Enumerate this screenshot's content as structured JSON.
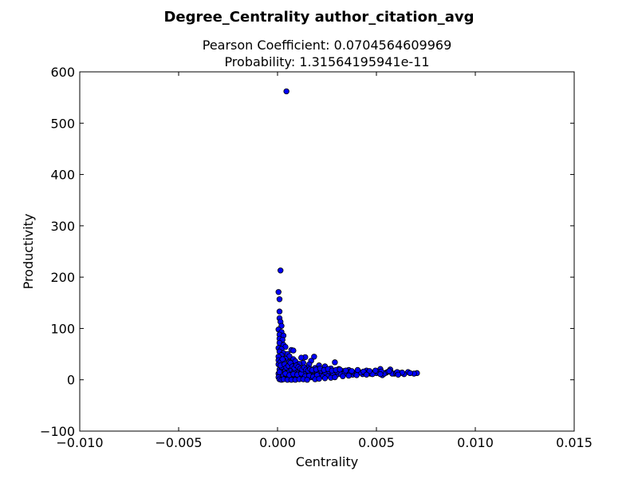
{
  "chart_data": {
    "type": "scatter",
    "title": "Degree_Centrality author_citation_avg",
    "subtitle_lines": [
      "Pearson Coefficient: 0.0704564609969",
      "Probability: 1.31564195941e-11"
    ],
    "xlabel": "Centrality",
    "ylabel": "Productivity",
    "xlim": [
      -0.01,
      0.015
    ],
    "ylim": [
      -100,
      600
    ],
    "x_ticks": [
      -0.01,
      -0.005,
      0.0,
      0.005,
      0.01,
      0.015
    ],
    "x_tick_labels": [
      "−0.010",
      "−0.005",
      "0.000",
      "0.005",
      "0.010",
      "0.015"
    ],
    "y_ticks": [
      -100,
      0,
      100,
      200,
      300,
      400,
      500,
      600
    ],
    "y_tick_labels": [
      "−100",
      "0",
      "100",
      "200",
      "300",
      "400",
      "500",
      "600"
    ],
    "grid": false,
    "marker_color": "#0000ff",
    "marker_edge_color": "#000000",
    "series": [
      {
        "points": [
          [
            0.00045,
            562
          ],
          [
            0.00015,
            213
          ],
          [
            5e-05,
            171
          ],
          [
            0.0001,
            157
          ],
          [
            0.0001,
            133
          ],
          [
            0.0001,
            120
          ],
          [
            0.00015,
            113
          ],
          [
            0.0002,
            105
          ],
          [
            5e-05,
            98
          ],
          [
            0.0002,
            93
          ],
          [
            0.0001,
            88
          ],
          [
            0.0003,
            86
          ],
          [
            0.0001,
            80
          ],
          [
            0.00025,
            78
          ],
          [
            0.0001,
            72
          ],
          [
            0.0003,
            68
          ],
          [
            0.0004,
            64
          ],
          [
            5e-05,
            62
          ],
          [
            0.0002,
            60
          ],
          [
            0.0007,
            58
          ],
          [
            0.0008,
            57
          ],
          [
            0.0001,
            55
          ],
          [
            0.0003,
            52
          ],
          [
            0.0005,
            50
          ],
          [
            0.0002,
            48
          ],
          [
            0.0006,
            46
          ],
          [
            0.00185,
            45
          ],
          [
            0.0014,
            44
          ],
          [
            0.0012,
            43
          ],
          [
            0.0001,
            42
          ],
          [
            0.0004,
            41
          ],
          [
            0.0008,
            40
          ],
          [
            0.0003,
            38
          ],
          [
            0.0017,
            37
          ],
          [
            0.0009,
            36
          ],
          [
            0.0006,
            35
          ],
          [
            0.0029,
            34
          ],
          [
            0.0013,
            33
          ],
          [
            0.0002,
            32
          ],
          [
            0.0011,
            31
          ],
          [
            0.0016,
            30
          ],
          [
            0.0007,
            29
          ],
          [
            0.0021,
            28
          ],
          [
            0.0004,
            27
          ],
          [
            0.0024,
            26
          ],
          [
            0.0009,
            25
          ],
          [
            0.0015,
            24
          ],
          [
            0.0019,
            23
          ],
          [
            0.0027,
            22
          ],
          [
            0.0031,
            21
          ],
          [
            0.0052,
            21
          ],
          [
            0.0057,
            20
          ],
          [
            0.0036,
            19
          ],
          [
            0.0045,
            18
          ],
          [
            0.0033,
            17
          ],
          [
            0.0041,
            16
          ],
          [
            0.0049,
            15
          ],
          [
            0.0055,
            14
          ],
          [
            0.0062,
            13
          ],
          [
            0.0066,
            15
          ],
          [
            0.00705,
            13
          ],
          [
            0.0059,
            12
          ],
          [
            0.0043,
            11
          ],
          [
            0.0038,
            10
          ],
          [
            0.0053,
            9
          ],
          [
            0.0047,
            12
          ],
          [
            0.0026,
            12
          ],
          [
            0.0022,
            11
          ],
          [
            0.0018,
            10
          ],
          [
            0.0014,
            9
          ],
          [
            0.0011,
            8
          ],
          [
            0.0008,
            7
          ],
          [
            0.0006,
            6
          ],
          [
            0.0004,
            5
          ],
          [
            0.0002,
            4
          ],
          [
            0.0001,
            3
          ],
          [
            0.0003,
            2
          ],
          [
            0.0005,
            1
          ],
          [
            0.0007,
            1
          ],
          [
            0.0009,
            2
          ],
          [
            0.0012,
            3
          ],
          [
            0.0015,
            4
          ],
          [
            0.0017,
            5
          ],
          [
            0.002,
            6
          ],
          [
            0.0023,
            7
          ],
          [
            0.0025,
            8
          ],
          [
            0.0028,
            9
          ],
          [
            0.003,
            10
          ],
          [
            0.0032,
            11
          ],
          [
            0.0035,
            12
          ],
          [
            0.0039,
            13
          ],
          [
            0.0044,
            14
          ],
          [
            0.005,
            13
          ],
          [
            0.0058,
            12
          ],
          [
            0.0064,
            11
          ],
          [
            0.0069,
            12
          ],
          [
            0.0001,
            20
          ],
          [
            0.0002,
            25
          ],
          [
            0.0003,
            15
          ],
          [
            0.0004,
            18
          ],
          [
            0.0005,
            22
          ],
          [
            0.0006,
            16
          ],
          [
            0.0007,
            19
          ],
          [
            0.0008,
            14
          ],
          [
            0.0009,
            17
          ],
          [
            0.001,
            21
          ],
          [
            0.0011,
            15
          ],
          [
            0.0012,
            18
          ],
          [
            0.0013,
            12
          ],
          [
            0.0014,
            16
          ],
          [
            0.0016,
            13
          ],
          [
            0.0018,
            17
          ],
          [
            0.002,
            14
          ],
          [
            0.0022,
            18
          ],
          [
            0.0024,
            15
          ],
          [
            0.0026,
            17
          ],
          [
            0.0028,
            13
          ],
          [
            0.003,
            16
          ],
          [
            0.0034,
            14
          ],
          [
            0.0037,
            16
          ],
          [
            0.004,
            12
          ],
          [
            0.0042,
            14
          ],
          [
            0.0046,
            13
          ],
          [
            0.0048,
            11
          ],
          [
            0.0051,
            15
          ],
          [
            0.0054,
            12
          ],
          [
            0.0056,
            16
          ],
          [
            0.006,
            13
          ],
          [
            0.0063,
            14
          ],
          [
            0.0067,
            13
          ],
          [
            0.0002,
            10
          ],
          [
            0.0004,
            12
          ],
          [
            0.0006,
            9
          ],
          [
            0.0008,
            11
          ],
          [
            0.001,
            10
          ],
          [
            0.0012,
            12
          ],
          [
            0.0014,
            7
          ],
          [
            0.0016,
            8
          ],
          [
            0.0018,
            6
          ],
          [
            0.002,
            9
          ],
          [
            5e-05,
            45
          ],
          [
            5e-05,
            38
          ],
          [
            5e-05,
            30
          ],
          [
            5e-05,
            12
          ],
          [
            5e-05,
            5
          ],
          [
            0.0001,
            15
          ],
          [
            0.00015,
            35
          ],
          [
            0.00015,
            28
          ],
          [
            0.00025,
            40
          ],
          [
            0.00035,
            30
          ],
          [
            0.00045,
            24
          ],
          [
            0.00055,
            27
          ],
          [
            0.00065,
            33
          ],
          [
            0.00075,
            26
          ],
          [
            0.00085,
            23
          ],
          [
            0.00095,
            28
          ],
          [
            0.00105,
            25
          ],
          [
            0.00115,
            22
          ],
          [
            0.00125,
            20
          ],
          [
            0.00135,
            24
          ],
          [
            0.00145,
            20
          ],
          [
            0.00155,
            18
          ],
          [
            0.00165,
            21
          ],
          [
            0.00175,
            19
          ],
          [
            0.00195,
            20
          ],
          [
            0.00215,
            22
          ],
          [
            0.00235,
            19
          ],
          [
            0.00255,
            21
          ],
          [
            0.00275,
            18
          ],
          [
            0.00295,
            19
          ],
          [
            0.00315,
            20
          ],
          [
            0.00345,
            18
          ],
          [
            0.00375,
            17
          ],
          [
            0.00405,
            19
          ],
          [
            0.00435,
            16
          ],
          [
            0.00465,
            17
          ],
          [
            0.00495,
            18
          ],
          [
            0.00525,
            16
          ],
          [
            0.00565,
            17
          ],
          [
            0.00605,
            15
          ],
          [
            0.0001,
            1
          ],
          [
            0.0002,
            0
          ],
          [
            0.0003,
            1
          ],
          [
            0.0005,
            0
          ],
          [
            0.0007,
            0
          ],
          [
            0.0009,
            0
          ],
          [
            0.0011,
            1
          ],
          [
            0.0013,
            1
          ],
          [
            0.0015,
            0
          ],
          [
            0.0019,
            1
          ],
          [
            0.0021,
            2
          ],
          [
            0.0024,
            3
          ],
          [
            0.0027,
            4
          ],
          [
            0.0029,
            5
          ],
          [
            0.0033,
            7
          ],
          [
            0.0036,
            8
          ],
          [
            0.004,
            9
          ],
          [
            0.0045,
            10
          ],
          [
            0.0052,
            11
          ],
          [
            0.0061,
            10
          ]
        ]
      }
    ]
  }
}
